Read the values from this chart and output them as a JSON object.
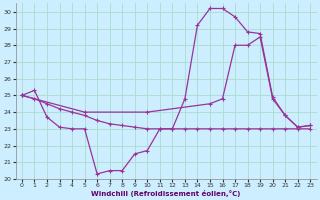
{
  "xlabel": "Windchill (Refroidissement éolien,°C)",
  "bg_color": "#cceeff",
  "grid_color": "#aaddcc",
  "line_color": "#993399",
  "xlim": [
    -0.5,
    23.5
  ],
  "ylim": [
    20,
    30.5
  ],
  "yticks": [
    20,
    21,
    22,
    23,
    24,
    25,
    26,
    27,
    28,
    29,
    30
  ],
  "xticks": [
    0,
    1,
    2,
    3,
    4,
    5,
    6,
    7,
    8,
    9,
    10,
    11,
    12,
    13,
    14,
    15,
    16,
    17,
    18,
    19,
    20,
    21,
    22,
    23
  ],
  "series1_x": [
    0,
    1,
    2,
    3,
    4,
    5,
    6,
    7,
    8,
    9,
    10,
    11,
    12,
    13,
    14,
    15,
    16,
    17,
    18,
    19,
    20,
    21,
    22,
    23
  ],
  "series1_y": [
    25.0,
    25.3,
    23.7,
    23.1,
    23.0,
    23.0,
    20.3,
    20.5,
    20.5,
    21.5,
    21.7,
    23.0,
    23.0,
    24.8,
    29.2,
    30.2,
    30.2,
    29.7,
    28.8,
    28.7,
    24.9,
    23.8,
    23.1,
    23.2
  ],
  "series2_x": [
    0,
    5,
    10,
    15,
    16,
    17,
    18,
    19,
    20,
    21,
    22,
    23
  ],
  "series2_y": [
    25.0,
    24.0,
    24.0,
    24.5,
    24.8,
    28.0,
    28.0,
    28.5,
    24.8,
    23.8,
    23.1,
    23.2
  ],
  "series3_x": [
    0,
    1,
    2,
    3,
    4,
    5,
    6,
    7,
    8,
    9,
    10,
    11,
    12,
    13,
    14,
    15,
    16,
    17,
    18,
    19,
    20,
    21,
    22,
    23
  ],
  "series3_y": [
    25.0,
    24.8,
    24.5,
    24.2,
    24.0,
    23.8,
    23.5,
    23.3,
    23.2,
    23.1,
    23.0,
    23.0,
    23.0,
    23.0,
    23.0,
    23.0,
    23.0,
    23.0,
    23.0,
    23.0,
    23.0,
    23.0,
    23.0,
    23.0
  ]
}
